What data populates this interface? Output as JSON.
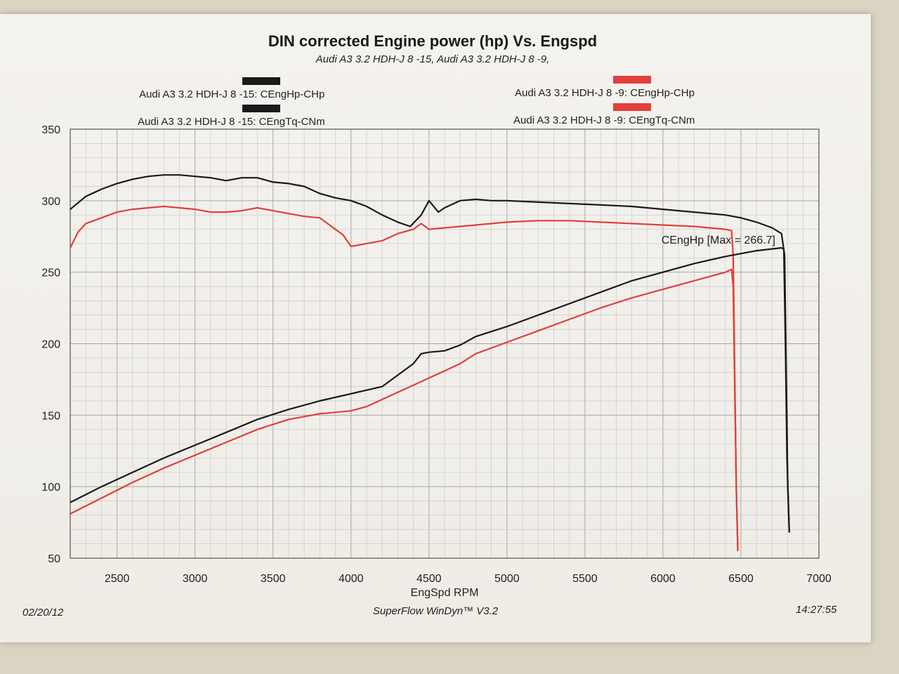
{
  "footer": {
    "date": "02/20/12",
    "software": "SuperFlow WinDyn™ V3.2",
    "time": "14:27:55"
  },
  "chart_data": {
    "type": "line",
    "title": "DIN corrected Engine power (hp) Vs. Engspd",
    "subtitle": "Audi A3 3.2 HDH-J 8 -15, Audi A3 3.2 HDH-J 8 -9,",
    "xlabel": "EngSpd RPM",
    "ylabel": "",
    "xlim": [
      2200,
      7000
    ],
    "ylim": [
      50,
      350
    ],
    "xticks": [
      2500,
      3000,
      3500,
      4000,
      4500,
      5000,
      5500,
      6000,
      6500,
      7000
    ],
    "yticks": [
      50,
      100,
      150,
      200,
      250,
      300,
      350
    ],
    "grid": true,
    "annotation": "CEngHp [Max = 266.7]",
    "legend": [
      {
        "label": "Audi A3 3.2 HDH-J 8 -15: CEngHp-CHp",
        "color": "#1a1a1a"
      },
      {
        "label": "Audi A3 3.2 HDH-J 8 -9: CEngHp-CHp",
        "color": "#e0403c"
      },
      {
        "label": "Audi A3 3.2 HDH-J 8 -15: CEngTq-CNm",
        "color": "#1a1a1a"
      },
      {
        "label": "Audi A3 3.2 HDH-J 8 -9: CEngTq-CNm",
        "color": "#e0403c"
      }
    ],
    "series": [
      {
        "name": "Audi A3 3.2 HDH-J 8 -15: CEngTq-CNm",
        "color": "#1a1a1a",
        "points": [
          [
            2200,
            294
          ],
          [
            2300,
            303
          ],
          [
            2400,
            308
          ],
          [
            2500,
            312
          ],
          [
            2600,
            315
          ],
          [
            2700,
            317
          ],
          [
            2800,
            318
          ],
          [
            2900,
            318
          ],
          [
            3000,
            317
          ],
          [
            3100,
            316
          ],
          [
            3200,
            314
          ],
          [
            3300,
            316
          ],
          [
            3400,
            316
          ],
          [
            3500,
            313
          ],
          [
            3600,
            312
          ],
          [
            3700,
            310
          ],
          [
            3800,
            305
          ],
          [
            3900,
            302
          ],
          [
            4000,
            300
          ],
          [
            4050,
            298
          ],
          [
            4100,
            296
          ],
          [
            4200,
            290
          ],
          [
            4300,
            285
          ],
          [
            4380,
            282
          ],
          [
            4450,
            290
          ],
          [
            4500,
            300
          ],
          [
            4560,
            292
          ],
          [
            4600,
            295
          ],
          [
            4700,
            300
          ],
          [
            4800,
            301
          ],
          [
            4900,
            300
          ],
          [
            5000,
            300
          ],
          [
            5200,
            299
          ],
          [
            5400,
            298
          ],
          [
            5600,
            297
          ],
          [
            5800,
            296
          ],
          [
            6000,
            294
          ],
          [
            6200,
            292
          ],
          [
            6400,
            290
          ],
          [
            6500,
            288
          ],
          [
            6600,
            285
          ],
          [
            6700,
            281
          ],
          [
            6760,
            277
          ],
          [
            6780,
            262
          ],
          [
            6790,
            180
          ],
          [
            6800,
            100
          ],
          [
            6810,
            68
          ]
        ]
      },
      {
        "name": "Audi A3 3.2 HDH-J 8 -9: CEngTq-CNm",
        "color": "#e0403c",
        "points": [
          [
            2200,
            267
          ],
          [
            2250,
            278
          ],
          [
            2300,
            284
          ],
          [
            2400,
            288
          ],
          [
            2500,
            292
          ],
          [
            2600,
            294
          ],
          [
            2700,
            295
          ],
          [
            2800,
            296
          ],
          [
            2900,
            295
          ],
          [
            3000,
            294
          ],
          [
            3100,
            292
          ],
          [
            3200,
            292
          ],
          [
            3300,
            293
          ],
          [
            3400,
            295
          ],
          [
            3500,
            293
          ],
          [
            3600,
            291
          ],
          [
            3700,
            289
          ],
          [
            3800,
            288
          ],
          [
            3900,
            280
          ],
          [
            3950,
            276
          ],
          [
            4000,
            268
          ],
          [
            4100,
            270
          ],
          [
            4200,
            272
          ],
          [
            4300,
            277
          ],
          [
            4400,
            280
          ],
          [
            4450,
            284
          ],
          [
            4500,
            280
          ],
          [
            4600,
            281
          ],
          [
            4700,
            282
          ],
          [
            4800,
            283
          ],
          [
            5000,
            285
          ],
          [
            5200,
            286
          ],
          [
            5400,
            286
          ],
          [
            5600,
            285
          ],
          [
            5800,
            284
          ],
          [
            6000,
            283
          ],
          [
            6200,
            282
          ],
          [
            6300,
            281
          ],
          [
            6400,
            280
          ],
          [
            6440,
            279
          ],
          [
            6450,
            262
          ],
          [
            6460,
            180
          ],
          [
            6470,
            100
          ],
          [
            6480,
            55
          ]
        ]
      },
      {
        "name": "Audi A3 3.2 HDH-J 8 -15: CEngHp-CHp",
        "color": "#1a1a1a",
        "points": [
          [
            2200,
            89
          ],
          [
            2400,
            100
          ],
          [
            2600,
            110
          ],
          [
            2800,
            120
          ],
          [
            3000,
            129
          ],
          [
            3200,
            138
          ],
          [
            3400,
            147
          ],
          [
            3600,
            154
          ],
          [
            3800,
            160
          ],
          [
            4000,
            165
          ],
          [
            4200,
            170
          ],
          [
            4300,
            178
          ],
          [
            4400,
            186
          ],
          [
            4450,
            193
          ],
          [
            4500,
            194
          ],
          [
            4600,
            195
          ],
          [
            4700,
            199
          ],
          [
            4800,
            205
          ],
          [
            5000,
            212
          ],
          [
            5200,
            220
          ],
          [
            5400,
            228
          ],
          [
            5600,
            236
          ],
          [
            5800,
            244
          ],
          [
            6000,
            250
          ],
          [
            6200,
            256
          ],
          [
            6400,
            261
          ],
          [
            6600,
            265
          ],
          [
            6760,
            267
          ],
          [
            6775,
            266
          ],
          [
            6785,
            200
          ],
          [
            6795,
            120
          ],
          [
            6810,
            68
          ]
        ]
      },
      {
        "name": "Audi A3 3.2 HDH-J 8 -9: CEngHp-CHp",
        "color": "#e0403c",
        "points": [
          [
            2200,
            81
          ],
          [
            2400,
            92
          ],
          [
            2600,
            103
          ],
          [
            2800,
            113
          ],
          [
            3000,
            122
          ],
          [
            3200,
            131
          ],
          [
            3400,
            140
          ],
          [
            3600,
            147
          ],
          [
            3800,
            151
          ],
          [
            4000,
            153
          ],
          [
            4100,
            156
          ],
          [
            4200,
            161
          ],
          [
            4300,
            166
          ],
          [
            4400,
            171
          ],
          [
            4500,
            176
          ],
          [
            4600,
            181
          ],
          [
            4700,
            186
          ],
          [
            4800,
            193
          ],
          [
            5000,
            201
          ],
          [
            5200,
            209
          ],
          [
            5400,
            217
          ],
          [
            5600,
            225
          ],
          [
            5800,
            232
          ],
          [
            6000,
            238
          ],
          [
            6200,
            244
          ],
          [
            6400,
            250
          ],
          [
            6440,
            252
          ],
          [
            6450,
            240
          ],
          [
            6460,
            170
          ],
          [
            6470,
            100
          ],
          [
            6480,
            55
          ]
        ]
      }
    ]
  }
}
